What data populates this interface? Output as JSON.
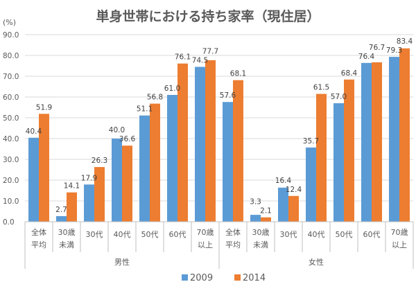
{
  "chart_data": {
    "type": "bar",
    "title": "単身世帯における持ち家率（現住居）",
    "ylabel": "(%)",
    "ylim": [
      0,
      90
    ],
    "yticks": [
      "0.0",
      "10.0",
      "20.0",
      "30.0",
      "40.0",
      "50.0",
      "60.0",
      "70.0",
      "80.0",
      "90.0"
    ],
    "grid": true,
    "legend_position": "bottom",
    "groups": [
      {
        "label": "男性",
        "categories": [
          [
            "全体",
            "平均"
          ],
          [
            "30歳",
            "未満"
          ],
          [
            "30代"
          ],
          [
            "40代"
          ],
          [
            "50代"
          ],
          [
            "60代"
          ],
          [
            "70歳",
            "以上"
          ]
        ]
      },
      {
        "label": "女性",
        "categories": [
          [
            "全体",
            "平均"
          ],
          [
            "30歳",
            "未満"
          ],
          [
            "30代"
          ],
          [
            "40代"
          ],
          [
            "50代"
          ],
          [
            "60代"
          ],
          [
            "70歳",
            "以上"
          ]
        ]
      }
    ],
    "series": [
      {
        "name": "2009",
        "color": "#5B9BD5",
        "values": [
          40.4,
          2.7,
          17.9,
          40.0,
          51.1,
          61.0,
          74.5,
          57.6,
          3.3,
          16.4,
          35.7,
          57.0,
          76.4,
          79.3
        ]
      },
      {
        "name": "2014",
        "color": "#ED7D31",
        "values": [
          51.9,
          14.1,
          26.3,
          36.6,
          56.8,
          76.1,
          77.7,
          68.1,
          2.1,
          12.4,
          61.5,
          68.4,
          76.7,
          83.4
        ]
      }
    ]
  }
}
